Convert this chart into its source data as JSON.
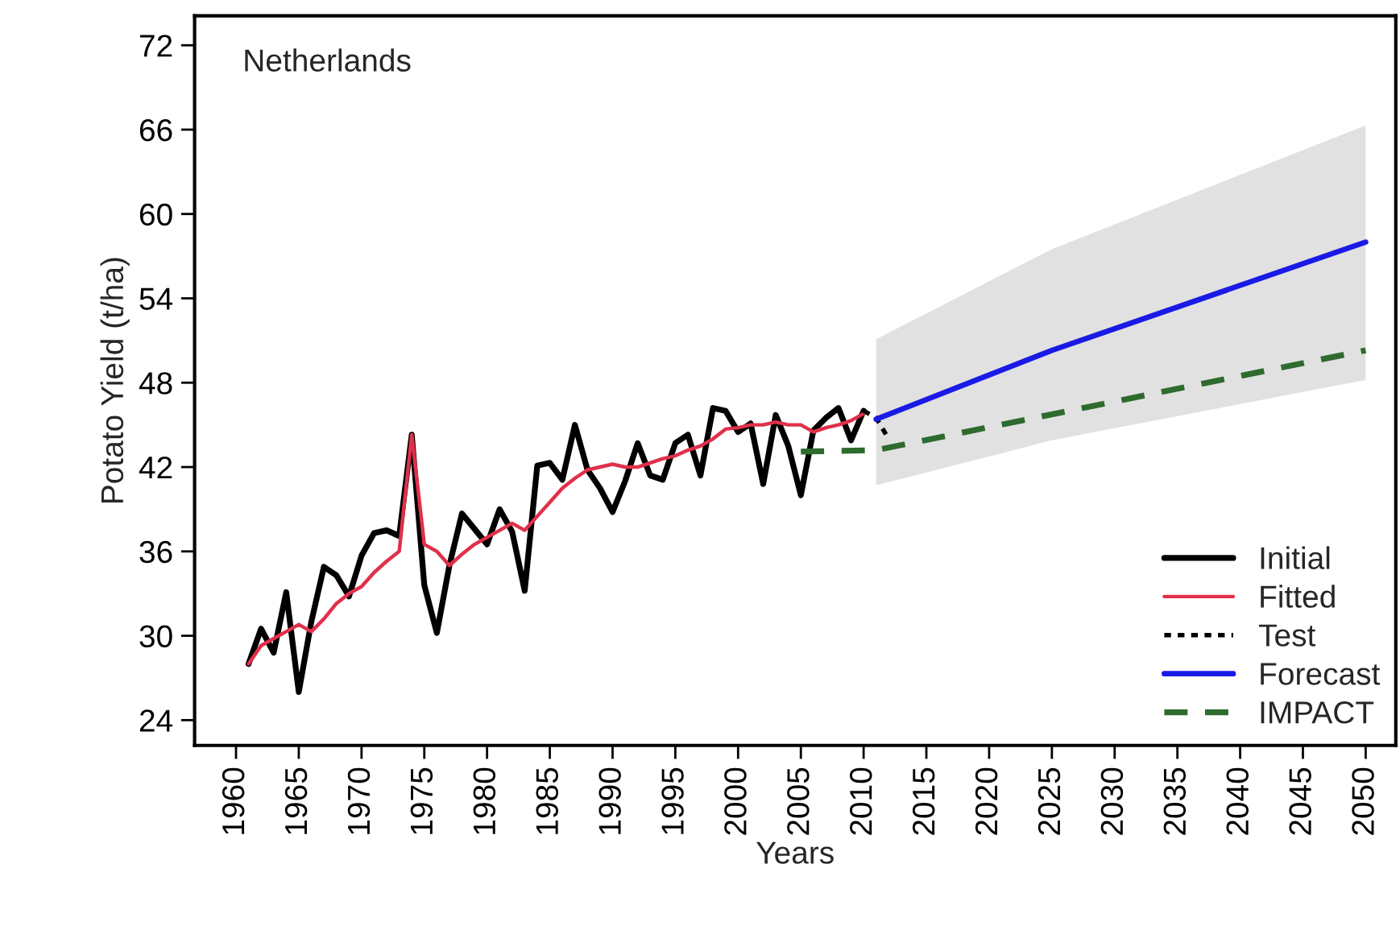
{
  "chart_data": {
    "type": "line",
    "xlabel": "Years",
    "ylabel": "Potato Yield (t/ha)",
    "annotations": [
      "Netherlands"
    ],
    "xlim": [
      1956.7,
      2052.4
    ],
    "ylim": [
      22.2,
      74.1
    ],
    "xticks": [
      1960,
      1965,
      1970,
      1975,
      1980,
      1985,
      1990,
      1995,
      2000,
      2005,
      2010,
      2015,
      2020,
      2025,
      2030,
      2035,
      2040,
      2045,
      2050
    ],
    "yticks": [
      24,
      30,
      36,
      42,
      48,
      54,
      60,
      66,
      72
    ],
    "grid": false,
    "legend": "bottom right",
    "marker": "none",
    "series": [
      {
        "name": "Initial",
        "color": "#000000",
        "line_style": "solid",
        "x": [
          1961,
          1962,
          1963,
          1964,
          1965,
          1966,
          1967,
          1968,
          1969,
          1970,
          1971,
          1972,
          1973,
          1974,
          1975,
          1976,
          1977,
          1978,
          1979,
          1980,
          1981,
          1982,
          1983,
          1984,
          1985,
          1986,
          1987,
          1988,
          1989,
          1990,
          1991,
          1992,
          1993,
          1994,
          1995,
          1996,
          1997,
          1998,
          1999,
          2000,
          2001,
          2002,
          2003,
          2004,
          2005,
          2006,
          2007,
          2008,
          2009,
          2010
        ],
        "values": [
          28.0,
          30.5,
          28.8,
          33.1,
          26.0,
          31.0,
          34.9,
          34.3,
          32.8,
          35.7,
          37.3,
          37.5,
          37.1,
          44.3,
          33.6,
          30.2,
          35.0,
          38.7,
          37.6,
          36.5,
          39.0,
          37.4,
          33.2,
          42.1,
          42.3,
          41.1,
          45.0,
          41.8,
          40.5,
          38.8,
          41.0,
          43.7,
          41.4,
          41.1,
          43.7,
          44.3,
          41.4,
          46.2,
          46.0,
          44.5,
          45.1,
          40.8,
          45.7,
          43.5,
          40.0,
          44.6,
          45.5,
          46.2,
          43.9,
          46.0
        ]
      },
      {
        "name": "Fitted",
        "color": "#e0304a",
        "line_style": "solid",
        "x": [
          1961,
          1962,
          1963,
          1964,
          1965,
          1966,
          1967,
          1968,
          1969,
          1970,
          1971,
          1972,
          1973,
          1974,
          1975,
          1976,
          1977,
          1978,
          1979,
          1980,
          1981,
          1982,
          1983,
          1984,
          1985,
          1986,
          1987,
          1988,
          1989,
          1990,
          1991,
          1992,
          1993,
          1994,
          1995,
          1996,
          1997,
          1998,
          1999,
          2000,
          2001,
          2002,
          2003,
          2004,
          2005,
          2006,
          2007,
          2008,
          2009,
          2010
        ],
        "values": [
          28.0,
          29.3,
          29.8,
          30.3,
          30.8,
          30.3,
          31.2,
          32.3,
          33.0,
          33.5,
          34.5,
          35.3,
          36.0,
          44.3,
          36.5,
          36.0,
          35.0,
          35.8,
          36.5,
          37.0,
          37.5,
          38.0,
          37.5,
          38.5,
          39.5,
          40.5,
          41.2,
          41.8,
          42.0,
          42.2,
          42.0,
          42.0,
          42.3,
          42.6,
          42.8,
          43.2,
          43.5,
          44.0,
          44.7,
          44.8,
          45.0,
          45.0,
          45.2,
          45.0,
          45.0,
          44.5,
          44.8,
          45.0,
          45.3,
          45.8
        ]
      },
      {
        "name": "Test",
        "color": "#000000",
        "line_style": "dotted",
        "x": [
          2010,
          2011,
          2012
        ],
        "values": [
          46.0,
          45.5,
          44.0
        ]
      },
      {
        "name": "Forecast",
        "color": "#1a1ae6",
        "line_style": "solid",
        "x": [
          2011,
          2025,
          2050
        ],
        "values": [
          45.4,
          50.3,
          58.0
        ],
        "lower": [
          40.7,
          43.9,
          48.2
        ],
        "upper": [
          51.1,
          57.5,
          66.3
        ]
      },
      {
        "name": "IMPACT",
        "color": "#2e6b2e",
        "line_style": "dashed",
        "x": [
          2005,
          2011,
          2050
        ],
        "values": [
          43.1,
          43.2,
          50.3
        ]
      }
    ]
  }
}
